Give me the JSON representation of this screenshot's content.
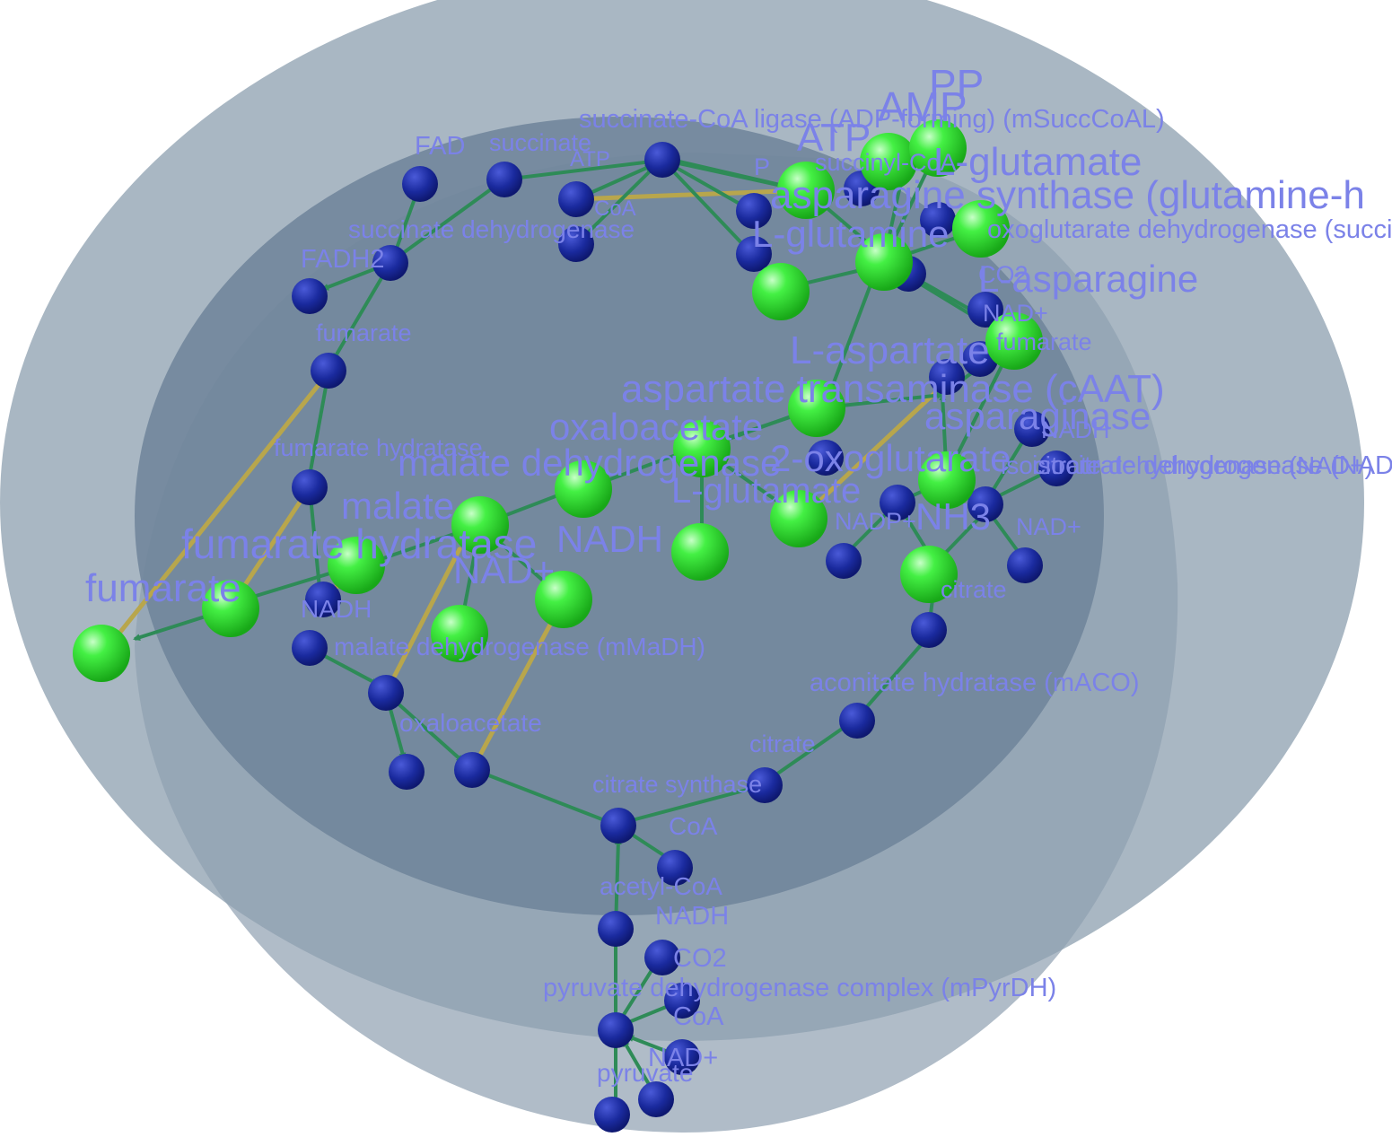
{
  "colors": {
    "background": "#ffffff",
    "compartment_outer": "#9aaab9",
    "compartment_inner": "#6f849a",
    "edge": "#2e8b57",
    "cross_link": "#b8a64c",
    "node_small": "#1a2a9e",
    "node_large": "#33ee33",
    "label": "#7b82e8"
  },
  "labels": {
    "succinate_coa_ligase": "succinate-CoA ligase (ADP-forming) (mSuccCoAL)",
    "fad": "FAD",
    "succinate": "succinate",
    "atp_small": "ATP",
    "coa_top": "CoA",
    "succinate_dehydrogenase": "succinate dehydrogenase",
    "fadh2": "FADH2",
    "fumarate_small": "fumarate",
    "fumarate_hydratase_small": "fumarate hydratase",
    "malate_small": "malate",
    "fumarate_hydratase": "fumarate hydratase",
    "fumarate_large": "fumarate",
    "malate_large": "malate",
    "malate_dehydrogenase": "malate dehydrogenase",
    "oxaloacetate_large": "oxaloacetate",
    "nadh_large": "NADH",
    "nad_large": "NAD+",
    "nadh_small_left": "NADH",
    "malate_dehydrogenase_mmadh": "malate dehydrogenase (mMaDH)",
    "oxaloacetate_small": "oxaloacetate",
    "citrate_synthase": "citrate synthase",
    "coa_mid": "CoA",
    "acetyl_coa": "acetyl-CoA",
    "nadh_bottom": "NADH",
    "co2": "CO2",
    "pyruvate_dehydrogenase": "pyruvate dehydrogenase complex (mPyrDH)",
    "coa_bottom": "CoA",
    "nad_bottom": "NAD+",
    "pyruvate": "pyruvate",
    "citrate_lower": "citrate",
    "aconitate_hydratase": "aconitate hydratase (mACO)",
    "citrate_right": "citrate",
    "isocitrate_dh": "isocitrate dehydrogenase (NADP+)(mICDH)",
    "isocitrate_dh_nad": "isocitrate dehydrogenase (NAD+)",
    "nad_right": "NAD+",
    "nadh_right": "NADH",
    "nadp_right": "NADP+",
    "nh3": "NH3",
    "two_oxoglutarate": "2-oxoglutarate",
    "l_glutamate_mid": "L-glutamate",
    "asparaginase": "asparaginase",
    "aspartate_transaminase": "aspartate transaminase (cAAT)",
    "l_aspartate": "L-aspartate",
    "fumarate_right": "fumarate",
    "l_asparagine": "L-asparagine",
    "l_glutamine": "L-glutamine",
    "asparagine_synthase": "asparagine synthase (glutamine-h",
    "oxoglutarate_dh": "oxoglutarate dehydrogenase (succinyl-transfe",
    "l_glutamate_top": "L-glutamate",
    "atp_large": "ATP",
    "amp": "AMP",
    "pp": "PP",
    "p_small": "P",
    "succinyl_coa": "succinyl-CoA",
    "nad_top_right": "NAD+",
    "co2_right": "CO2"
  }
}
